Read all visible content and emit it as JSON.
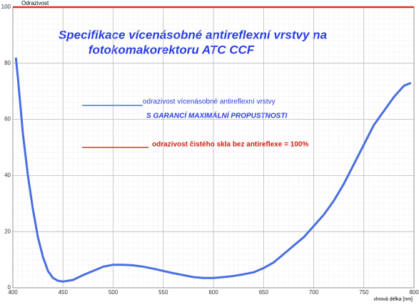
{
  "chart_data": {
    "type": "line",
    "title": [
      "Specifikace vícenásobné antireflexní vrstvy na",
      "fotokomakorektoru ATC CCF"
    ],
    "ylabel": "Odrazivost",
    "xlabel": "vlnová délka [nm]",
    "annotation": "S GARANCÍ MAXIMÁLNÍ PROPUSTNOSTI",
    "xlim": [
      400,
      800
    ],
    "xticks": [
      400,
      450,
      500,
      550,
      600,
      650,
      700,
      750,
      800
    ],
    "ylim": [
      0,
      100
    ],
    "yticks": [
      0,
      20,
      40,
      60,
      80,
      100
    ],
    "grid": true,
    "series": [
      {
        "name": "odrazivost vícenásobné antireflexní vrstvy",
        "color": "#4a6fe0",
        "x": [
          403,
          405,
          410,
          415,
          420,
          425,
          430,
          435,
          440,
          445,
          450,
          460,
          470,
          480,
          490,
          500,
          510,
          520,
          530,
          540,
          550,
          560,
          570,
          580,
          590,
          600,
          610,
          620,
          630,
          640,
          650,
          660,
          670,
          680,
          690,
          700,
          710,
          720,
          730,
          740,
          750,
          760,
          770,
          780,
          790,
          797
        ],
        "values": [
          82,
          75,
          55,
          40,
          28,
          18,
          11,
          6,
          3.5,
          2.5,
          2.2,
          2.8,
          4.5,
          6,
          7.5,
          8.2,
          8.2,
          8,
          7.5,
          6.8,
          6,
          5.2,
          4.5,
          3.8,
          3.5,
          3.5,
          3.8,
          4.2,
          4.8,
          5.5,
          7,
          9,
          12,
          15,
          18,
          22,
          26,
          31,
          37,
          44,
          51,
          58,
          63,
          68,
          72,
          73
        ]
      },
      {
        "name": "odrazivost čistého skla bez antireflexe = 100%",
        "color": "#e03020",
        "x": [
          400,
          800
        ],
        "values": [
          100,
          100
        ]
      }
    ]
  }
}
